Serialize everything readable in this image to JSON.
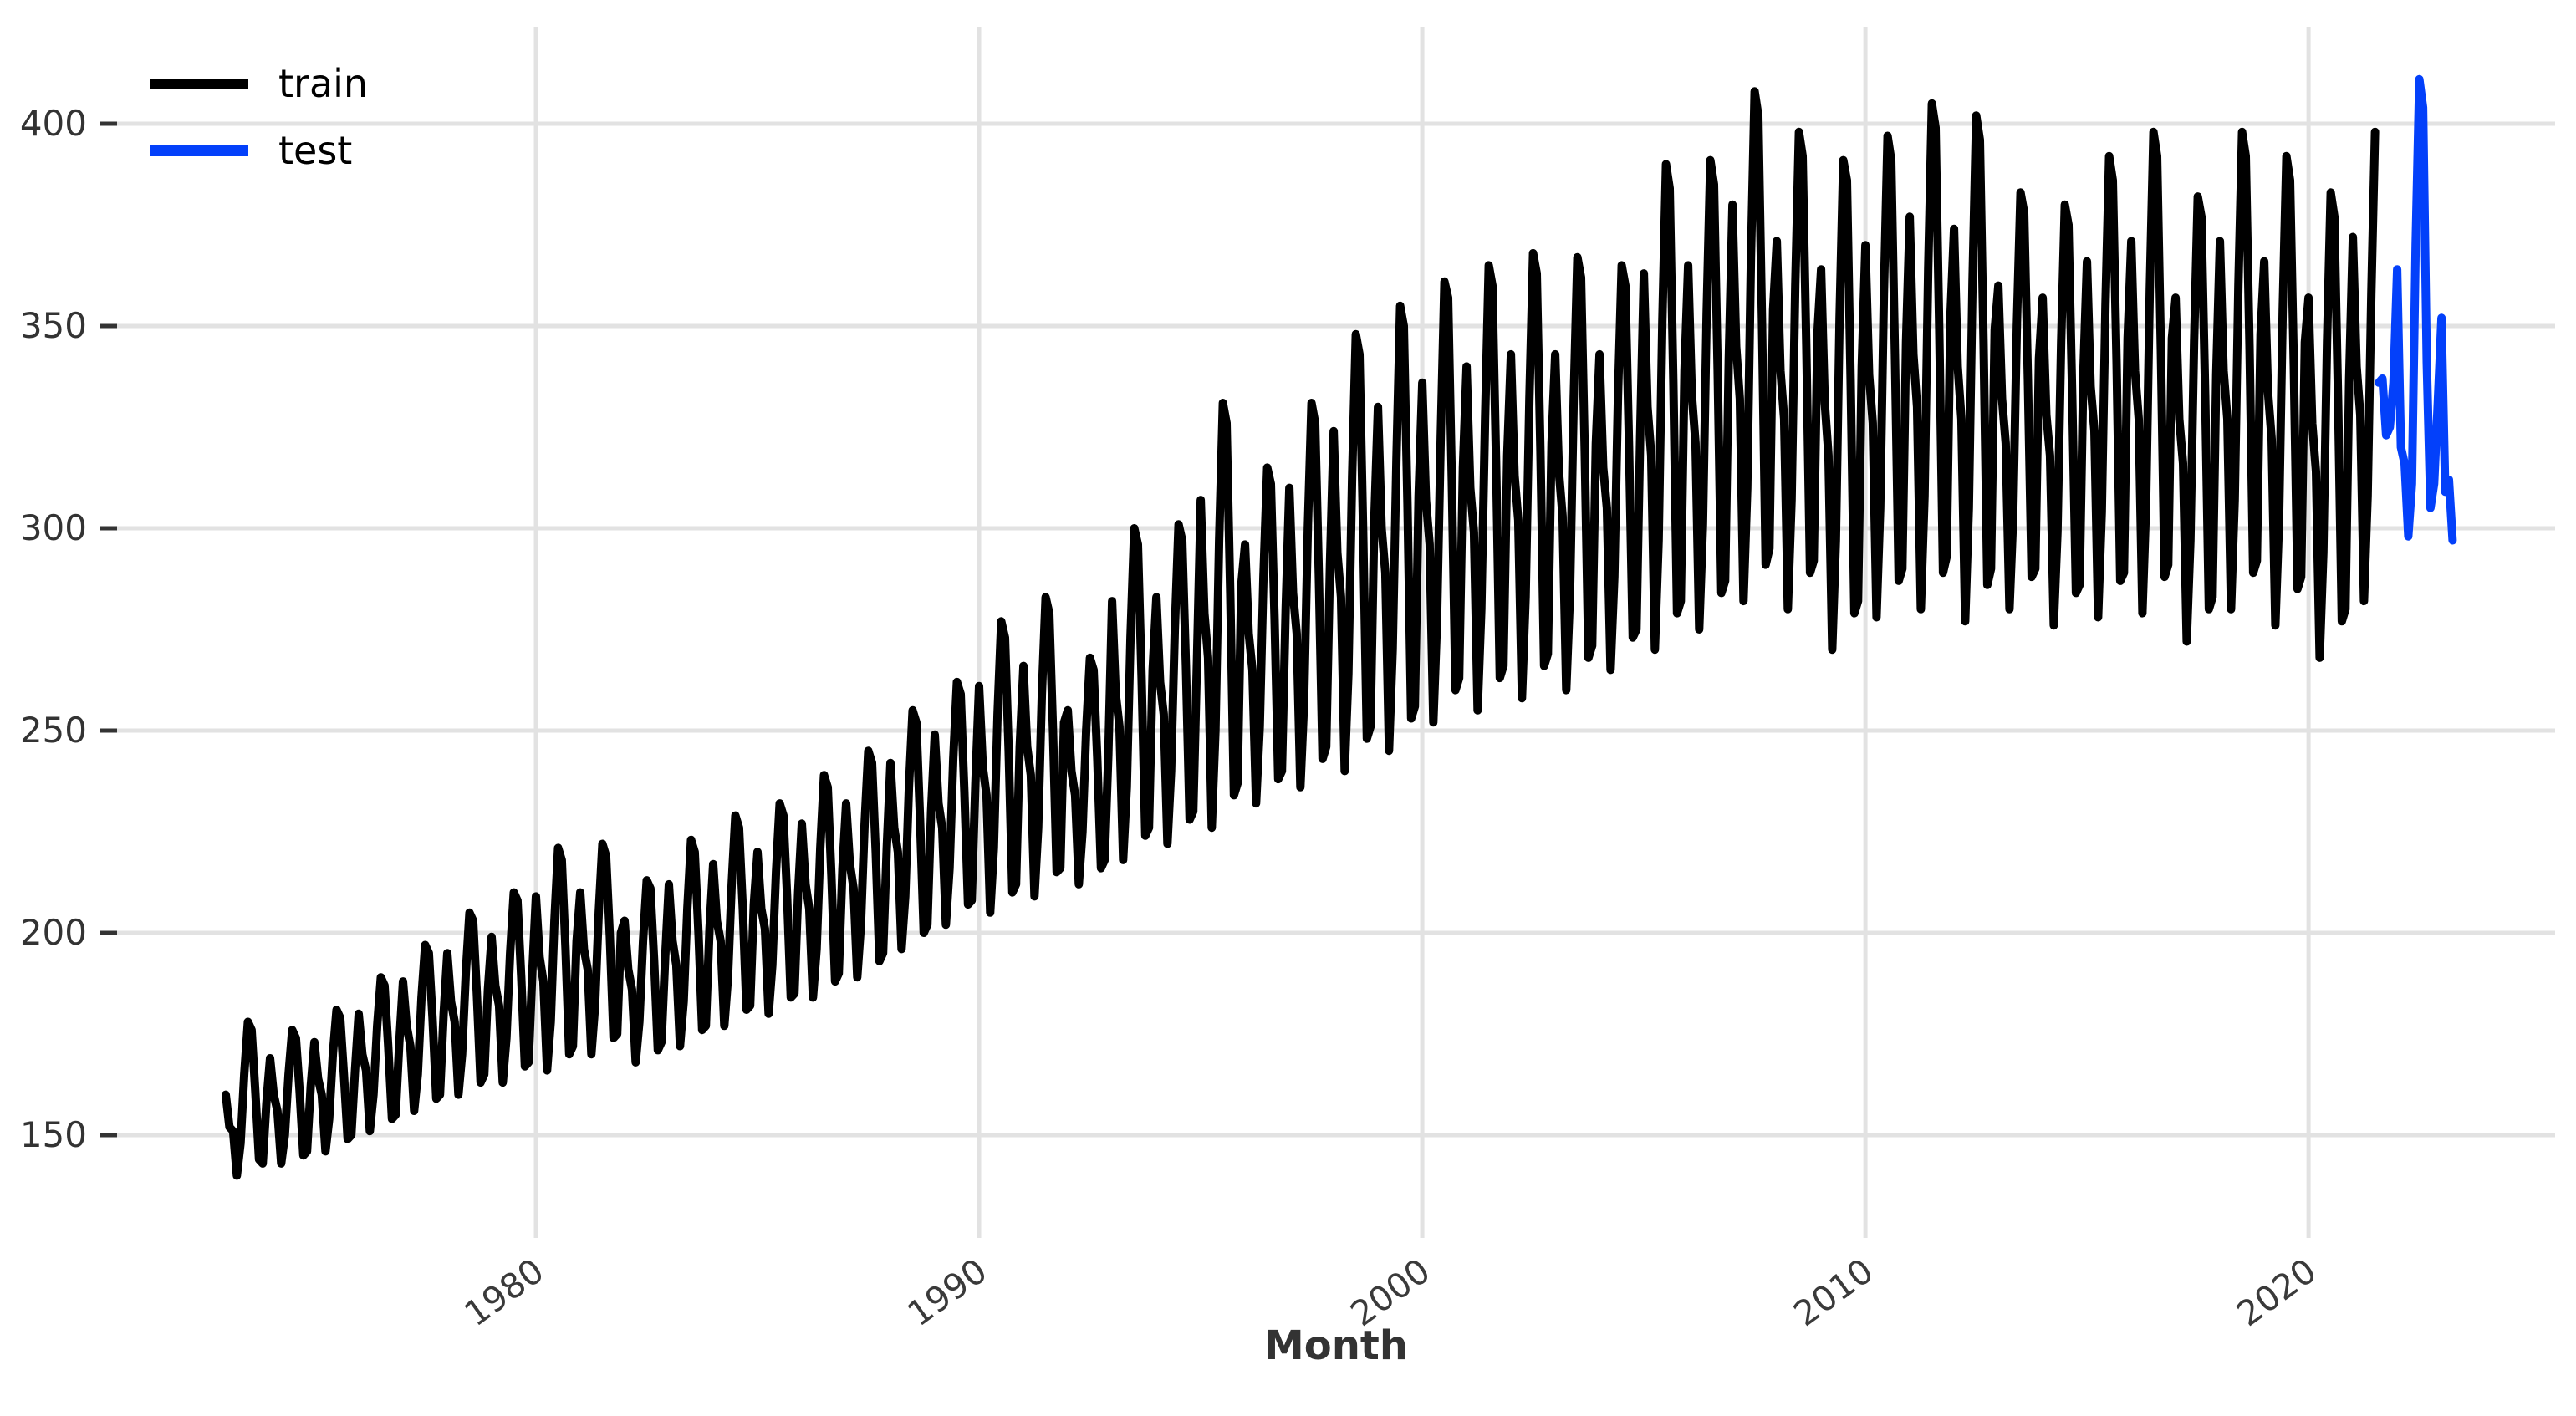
{
  "figure": {
    "x_axis_label": "Month",
    "x_tick_labels": [
      "1980",
      "1990",
      "2000",
      "2010",
      "2020"
    ],
    "y_tick_labels": [
      "150",
      "200",
      "250",
      "300",
      "350",
      "400"
    ]
  },
  "chart_data": {
    "type": "line",
    "title": "",
    "xlabel": "Month",
    "ylabel": "",
    "grid": true,
    "legend_position": "upper-left",
    "x_axis": {
      "frequency": "monthly",
      "start_month": "1973-01",
      "end_month": "2023-04",
      "tick_years": [
        1980,
        1990,
        2000,
        2010,
        2020
      ]
    },
    "y_axis": {
      "tick_values": [
        150,
        200,
        250,
        300,
        350,
        400
      ],
      "range": [
        124,
        424
      ]
    },
    "series": [
      {
        "name": "train",
        "color": "#000000",
        "start_month": "1973-01",
        "values": [
          160,
          152,
          151,
          140,
          148,
          165,
          178,
          176,
          161,
          144,
          143,
          158,
          169,
          160,
          156,
          143,
          150,
          165,
          176,
          174,
          161,
          145,
          146,
          162,
          173,
          164,
          160,
          146,
          154,
          170,
          181,
          179,
          165,
          149,
          150,
          166,
          180,
          170,
          166,
          151,
          160,
          177,
          189,
          187,
          172,
          154,
          155,
          173,
          188,
          177,
          172,
          156,
          165,
          184,
          197,
          195,
          179,
          159,
          160,
          180,
          195,
          183,
          178,
          160,
          170,
          190,
          205,
          203,
          185,
          163,
          165,
          186,
          199,
          187,
          182,
          163,
          174,
          195,
          210,
          208,
          189,
          167,
          168,
          190,
          209,
          194,
          188,
          166,
          178,
          203,
          221,
          218,
          196,
          170,
          172,
          198,
          210,
          196,
          191,
          170,
          182,
          205,
          222,
          219,
          199,
          174,
          175,
          200,
          203,
          191,
          186,
          168,
          178,
          198,
          213,
          211,
          193,
          171,
          173,
          194,
          212,
          198,
          192,
          172,
          183,
          206,
          223,
          220,
          200,
          176,
          177,
          201,
          217,
          203,
          198,
          177,
          189,
          212,
          229,
          226,
          206,
          181,
          182,
          207,
          220,
          206,
          201,
          180,
          192,
          215,
          232,
          229,
          209,
          184,
          185,
          210,
          227,
          212,
          206,
          184,
          196,
          221,
          239,
          236,
          214,
          188,
          190,
          216,
          232,
          217,
          211,
          189,
          202,
          227,
          245,
          242,
          220,
          193,
          195,
          221,
          242,
          226,
          220,
          196,
          209,
          236,
          255,
          252,
          228,
          200,
          202,
          230,
          249,
          232,
          226,
          202,
          216,
          243,
          262,
          259,
          235,
          207,
          208,
          237,
          261,
          241,
          234,
          205,
          221,
          254,
          277,
          273,
          245,
          210,
          212,
          246,
          266,
          246,
          239,
          209,
          226,
          259,
          283,
          279,
          250,
          215,
          216,
          252,
          255,
          240,
          234,
          212,
          225,
          250,
          268,
          265,
          243,
          216,
          218,
          244,
          282,
          259,
          251,
          218,
          236,
          273,
          300,
          296,
          263,
          224,
          226,
          265,
          283,
          262,
          254,
          222,
          240,
          275,
          301,
          297,
          266,
          228,
          230,
          267,
          307,
          279,
          268,
          226,
          250,
          297,
          331,
          326,
          284,
          234,
          237,
          286,
          296,
          274,
          265,
          232,
          251,
          288,
          315,
          311,
          278,
          238,
          240,
          280,
          310,
          284,
          274,
          236,
          257,
          300,
          331,
          326,
          288,
          243,
          246,
          291,
          324,
          294,
          283,
          240,
          264,
          313,
          348,
          343,
          299,
          248,
          251,
          302,
          330,
          300,
          289,
          245,
          270,
          317,
          355,
          350,
          306,
          253,
          256,
          308,
          336,
          307,
          296,
          252,
          277,
          323,
          361,
          357,
          312,
          260,
          263,
          315,
          340,
          310,
          299,
          255,
          280,
          327,
          365,
          360,
          316,
          263,
          266,
          318,
          343,
          313,
          302,
          258,
          283,
          332,
          368,
          363,
          319,
          266,
          269,
          321,
          343,
          314,
          303,
          260,
          284,
          332,
          367,
          362,
          319,
          268,
          271,
          321,
          343,
          315,
          305,
          265,
          288,
          333,
          365,
          360,
          320,
          273,
          275,
          323,
          363,
          330,
          318,
          270,
          297,
          351,
          390,
          384,
          336,
          279,
          282,
          339,
          365,
          333,
          321,
          275,
          301,
          353,
          391,
          385,
          339,
          284,
          287,
          342,
          380,
          345,
          332,
          282,
          310,
          367,
          408,
          402,
          351,
          291,
          295,
          354,
          371,
          339,
          327,
          280,
          307,
          360,
          398,
          392,
          345,
          289,
          292,
          348,
          364,
          331,
          318,
          270,
          297,
          352,
          391,
          386,
          337,
          279,
          282,
          340,
          370,
          338,
          326,
          278,
          305,
          358,
          397,
          391,
          343,
          287,
          290,
          346,
          377,
          343,
          330,
          280,
          308,
          364,
          405,
          399,
          349,
          289,
          293,
          352,
          374,
          340,
          327,
          277,
          305,
          361,
          402,
          396,
          346,
          286,
          290,
          349,
          360,
          332,
          321,
          280,
          303,
          350,
          383,
          378,
          337,
          288,
          290,
          342,
          357,
          328,
          318,
          276,
          299,
          346,
          380,
          375,
          333,
          284,
          286,
          338,
          366,
          335,
          324,
          278,
          304,
          355,
          392,
          386,
          341,
          287,
          289,
          347,
          371,
          339,
          327,
          279,
          306,
          359,
          398,
          392,
          344,
          288,
          291,
          347,
          357,
          327,
          316,
          272,
          297,
          346,
          382,
          377,
          333,
          280,
          283,
          338,
          371,
          339,
          327,
          280,
          307,
          360,
          398,
          392,
          345,
          289,
          292,
          348,
          366,
          334,
          322,
          276,
          302,
          354,
          392,
          386,
          340,
          285,
          288,
          346,
          357,
          326,
          314,
          268,
          294,
          346,
          383,
          377,
          331,
          277,
          280,
          337,
          372,
          340,
          328,
          282,
          308,
          358,
          398
        ]
      },
      {
        "name": "test",
        "color": "#0340fa",
        "start_month": "2021-08",
        "values": [
          336,
          337,
          323,
          325,
          336,
          364,
          320,
          316,
          298,
          311,
          370,
          411,
          404,
          341,
          305,
          311,
          331,
          352,
          309,
          312,
          297
        ]
      }
    ]
  }
}
